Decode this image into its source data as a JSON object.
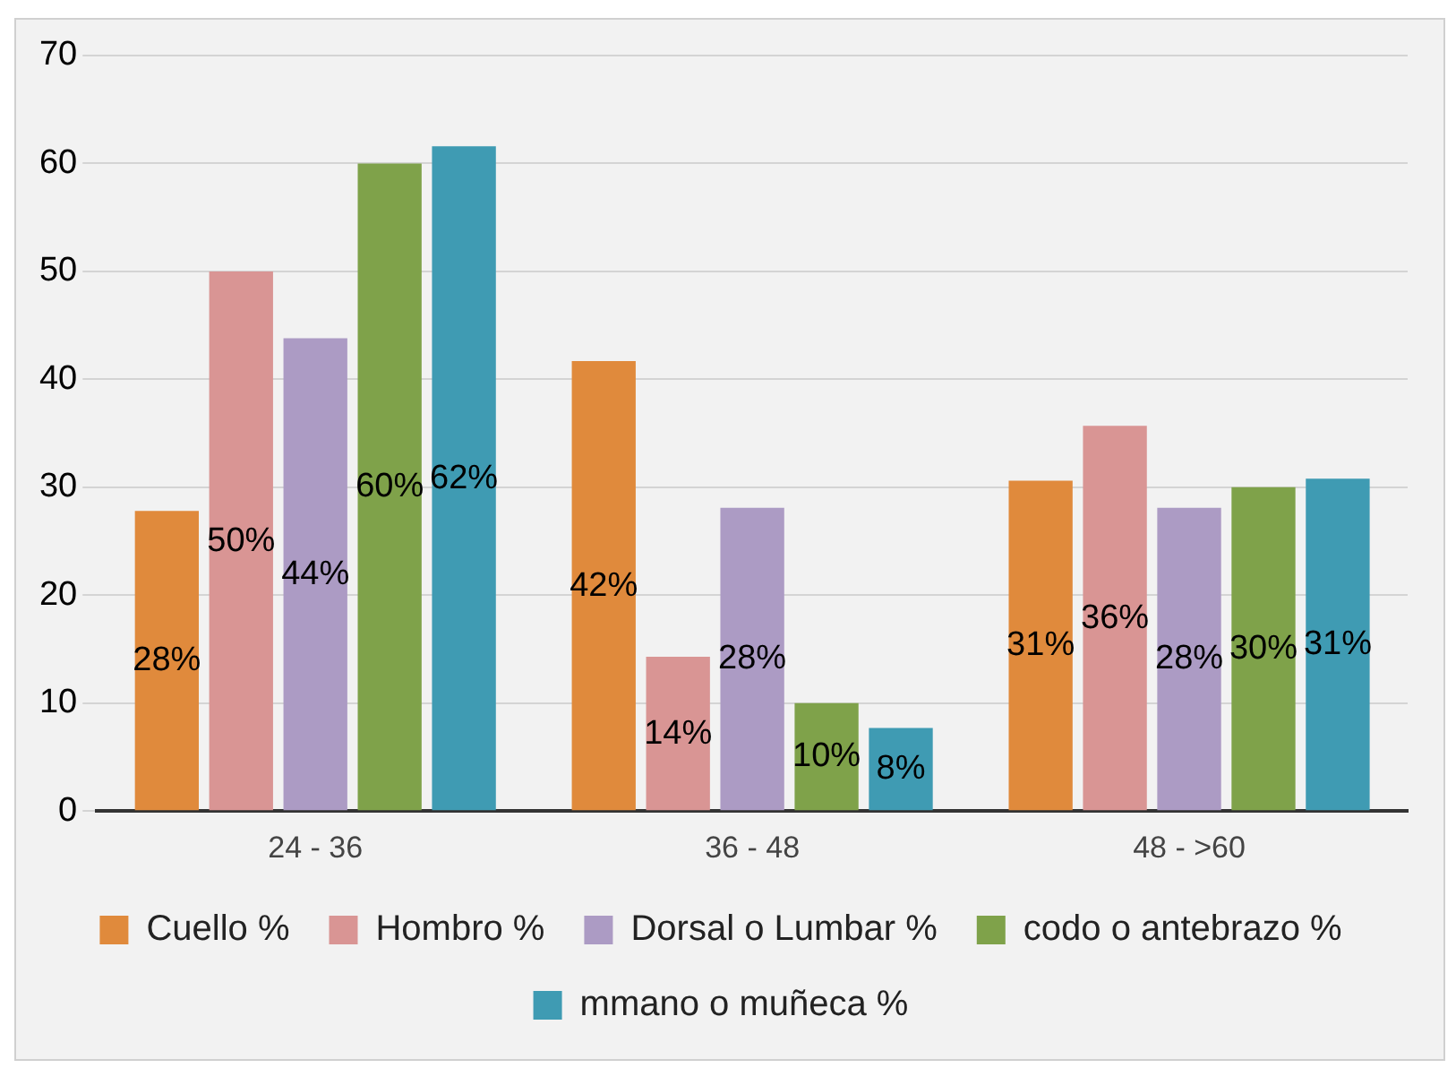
{
  "chart_data": {
    "type": "bar",
    "categories": [
      "24 - 36",
      "36 - 48",
      "48 - >60"
    ],
    "series": [
      {
        "name": "Cuello %",
        "color": "#e08a3c",
        "values": [
          27.8,
          41.7,
          30.6
        ],
        "value_labels": [
          "28%",
          "42%",
          "31%"
        ]
      },
      {
        "name": "Hombro %",
        "color": "#d99594",
        "values": [
          50,
          14.3,
          35.7
        ],
        "value_labels": [
          "50%",
          "14%",
          "36%"
        ]
      },
      {
        "name": "Dorsal o Lumbar %",
        "color": "#ac9bc4",
        "values": [
          43.8,
          28.1,
          28.1
        ],
        "value_labels": [
          "44%",
          "28%",
          "28%"
        ]
      },
      {
        "name": "codo o antebrazo %",
        "color": "#7fa24a",
        "values": [
          60,
          10,
          30
        ],
        "value_labels": [
          "60%",
          "10%",
          "30%"
        ]
      },
      {
        "name": "mmano o muñeca %",
        "color": "#3f9bb3",
        "values": [
          61.6,
          7.7,
          30.8
        ],
        "value_labels": [
          "62%",
          "8%",
          "31%"
        ]
      }
    ],
    "ylim": [
      0,
      70
    ],
    "yticks": [
      0,
      10,
      20,
      30,
      40,
      50,
      60,
      70
    ],
    "grid": "y",
    "legend": "bottom"
  }
}
